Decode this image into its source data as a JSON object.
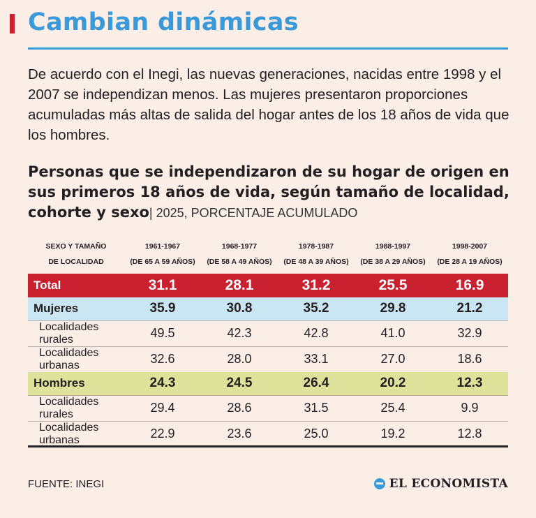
{
  "title": "Cambian dinámicas",
  "intro": "De acuerdo con el Inegi, las nuevas generaciones, nacidas entre 1998 y el 2007 se independizan menos. Las mujeres presentaron proporciones acumuladas más altas de salida del hogar antes de los 18 años de vida que los hombres.",
  "subtitle": "Personas que se independizaron de su hogar de origen en sus primeros 18 años de vida, según tamaño de localidad, cohorte y sexo",
  "subtitle_unit": "| 2025, PORCENTAJE ACUMULADO",
  "colors": {
    "title": "#3a9ad9",
    "total_row": "#c8202f",
    "mujeres_row": "#cbe6f3",
    "hombres_row": "#dfe29a",
    "background": "#fbeee6"
  },
  "source": "FUENTE: INEGI",
  "brand": "EL ECONOMISTA",
  "brand_icon": "el-economista-logo-icon",
  "chart_data": {
    "type": "table",
    "row_header": [
      "SEXO Y TAMAÑO",
      "DE LOCALIDAD"
    ],
    "columns": [
      {
        "cohort": "1961-1967",
        "ages": "(DE 65 A 59 AÑOS)"
      },
      {
        "cohort": "1968-1977",
        "ages": "(DE 58 A 49 AÑOS)"
      },
      {
        "cohort": "1978-1987",
        "ages": "(DE 48 A 39 AÑOS)"
      },
      {
        "cohort": "1988-1997",
        "ages": "(DE 38 A 29 AÑOS)"
      },
      {
        "cohort": "1998-2007",
        "ages": "(DE 28 A 19 AÑOS)"
      }
    ],
    "rows": [
      {
        "label": "Total",
        "values": [
          "31.1",
          "28.1",
          "31.2",
          "25.5",
          "16.9"
        ]
      },
      {
        "label": "Mujeres",
        "values": [
          "35.9",
          "30.8",
          "35.2",
          "29.8",
          "21.2"
        ]
      },
      {
        "label": "Localidades rurales",
        "values": [
          "49.5",
          "42.3",
          "42.8",
          "41.0",
          "32.9"
        ]
      },
      {
        "label": "Localidades urbanas",
        "values": [
          "32.6",
          "28.0",
          "33.1",
          "27.0",
          "18.6"
        ]
      },
      {
        "label": "Hombres",
        "values": [
          "24.3",
          "24.5",
          "26.4",
          "20.2",
          "12.3"
        ]
      },
      {
        "label": "Localidades rurales",
        "values": [
          "29.4",
          "28.6",
          "31.5",
          "25.4",
          "9.9"
        ]
      },
      {
        "label": "Localidades urbanas",
        "values": [
          "22.9",
          "23.6",
          "25.0",
          "19.2",
          "12.8"
        ]
      }
    ]
  }
}
